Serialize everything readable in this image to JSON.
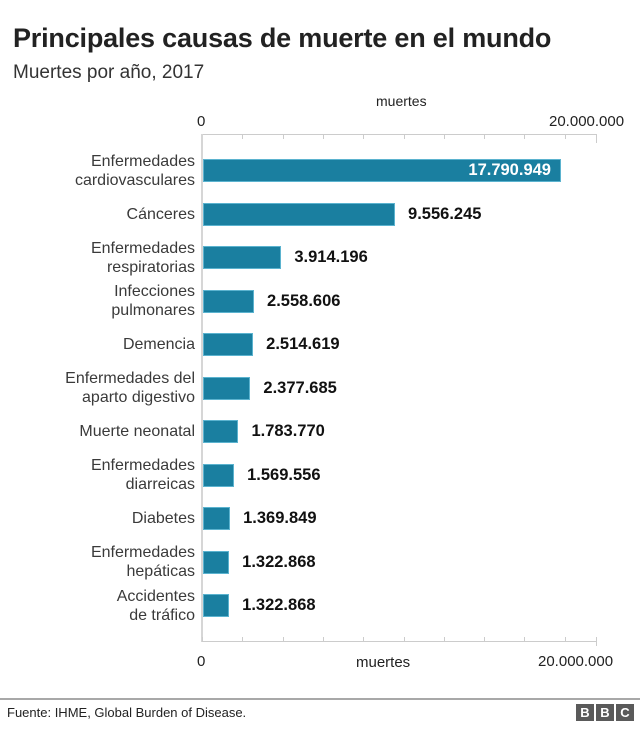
{
  "header": {
    "title": "Principales causas de muerte en el mundo",
    "subtitle": "Muertes por año, 2017"
  },
  "axis": {
    "unit_label_top": "muertes",
    "unit_label_bottom": "muertes",
    "min_label": "0",
    "max_label": "20.000.000"
  },
  "colors": {
    "bar": "#1a7fa0",
    "bar_edge": "#5bb3cf"
  },
  "footer": {
    "source": "Fuente: IHME, Global Burden of Disease.",
    "logo_letters": [
      "B",
      "B",
      "C"
    ]
  },
  "chart_data": {
    "type": "bar",
    "orientation": "horizontal",
    "title": "Principales causas de muerte en el mundo",
    "subtitle": "Muertes por año, 2017",
    "xlabel": "muertes",
    "ylabel": "",
    "xlim": [
      0,
      20000000
    ],
    "x_ticks_major_labels": [
      "0",
      "20.000.000"
    ],
    "x_tick_interval": 2000000,
    "grid": false,
    "legend": null,
    "categories": [
      [
        "Enfermedades",
        "cardiovasculares"
      ],
      [
        "Cánceres"
      ],
      [
        "Enfermedades",
        "respiratorias"
      ],
      [
        "Infecciones",
        "pulmonares"
      ],
      [
        "Demencia"
      ],
      [
        "Enfermedades del",
        "aparto digestivo"
      ],
      [
        "Muerte neonatal"
      ],
      [
        "Enfermedades",
        "diarreicas"
      ],
      [
        "Diabetes"
      ],
      [
        "Enfermedades",
        "hepáticas"
      ],
      [
        "Accidentes",
        "de tráfico"
      ]
    ],
    "values": [
      17790949,
      9556245,
      3914196,
      2558606,
      2514619,
      2377685,
      1783770,
      1569556,
      1369849,
      1322868,
      1322868
    ],
    "value_labels": [
      "17.790.949",
      "9.556.245",
      "3.914.196",
      "2.558.606",
      "2.514.619",
      "2.377.685",
      "1.783.770",
      "1.569.556",
      "1.369.849",
      "1.322.868",
      "1.322.868"
    ]
  }
}
